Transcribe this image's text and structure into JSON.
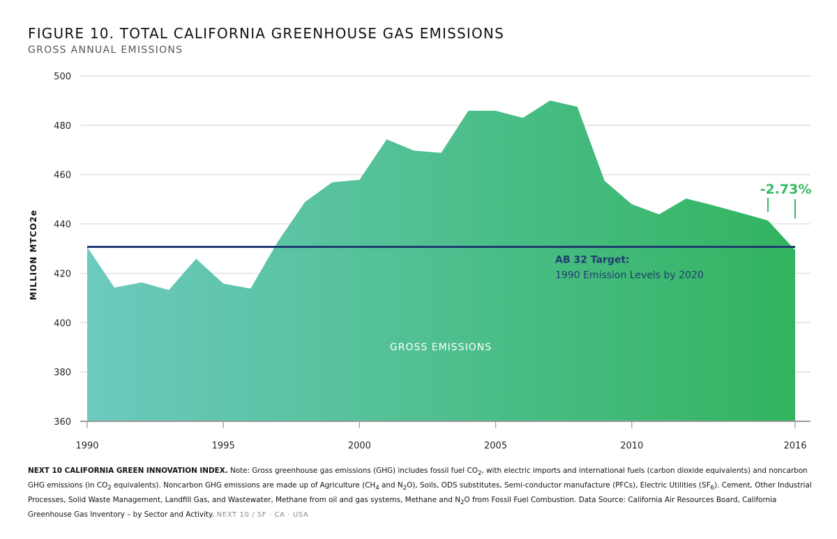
{
  "header": {
    "title": "FIGURE 10. TOTAL CALIFORNIA GREENHOUSE GAS EMISSIONS",
    "subtitle": "GROSS ANNUAL EMISSIONS"
  },
  "chart_data": {
    "type": "area",
    "x": [
      1990,
      1991,
      1992,
      1993,
      1994,
      1995,
      1996,
      1997,
      1998,
      1999,
      2000,
      2001,
      2002,
      2003,
      2004,
      2005,
      2006,
      2007,
      2008,
      2009,
      2010,
      2011,
      2012,
      2013,
      2014,
      2015,
      2016
    ],
    "series": [
      {
        "values": [
          430.7,
          414.2,
          416.3,
          413.2,
          425.9,
          415.8,
          413.8,
          432.8,
          448.9,
          456.9,
          457.9,
          474.3,
          469.7,
          468.8,
          485.9,
          485.9,
          483.0,
          490.0,
          487.5,
          457.5,
          448.0,
          443.9,
          450.3,
          447.5,
          444.5,
          441.4,
          429.4
        ]
      }
    ],
    "ylabel": "MILLION MTCO2e",
    "ylim": [
      360,
      500
    ],
    "yticks": [
      360,
      380,
      400,
      420,
      440,
      460,
      480,
      500
    ],
    "xlim": [
      1990,
      2016
    ],
    "xticks": [
      1990,
      1995,
      2000,
      2005,
      2010,
      2016
    ],
    "grid": true,
    "target_line": {
      "value": 430.7,
      "label_line1": "AB 32 Target:",
      "label_line2": "1990 Emission Levels by 2020",
      "color": "#1f3c6e"
    },
    "area_label": "GROSS EMISSIONS",
    "change_annotation": {
      "text": "-2.73%",
      "from_year": 2015,
      "to_year": 2016,
      "color": "#35b863"
    },
    "colors": {
      "gradient_start": "#6ccabf",
      "gradient_end": "#32b45f",
      "grid": "#d9d9d9",
      "baseline": "#9a9a9a"
    }
  },
  "footer": {
    "lead": "NEXT 10 CALIFORNIA GREEN INNOVATION INDEX.",
    "note_a": " Note: Gross greenhouse gas emissions (GHG) includes fossil fuel CO",
    "sub_2a": "2",
    "note_b": ", with electric imports and international fuels (carbon dioxide equivalents) and noncarbon GHG emissions (in CO",
    "sub_2b": "2",
    "note_c": " equivalents). Noncarbon GHG emissions are made up of Agriculture (CH",
    "sub_4": "4",
    "note_d": " and N",
    "sub_2c": "2",
    "note_e": "O), Soils, ODS substitutes, Semi-conductor manufacture (PFCs), Electric Utilities (SF",
    "sub_6": "6",
    "note_f": "). Cement, Other Industrial Processes, Solid Waste Management, Landfill Gas, and Wastewater, Methane from oil and gas systems, Methane and N",
    "sub_2d": "2",
    "note_g": "O from Fossil Fuel Combustion. Data Source: California Air Resources Board, California Greenhouse Gas Inventory – by Sector and Activity.",
    "brand": " NEXT 10  /  SF · CA · USA"
  }
}
